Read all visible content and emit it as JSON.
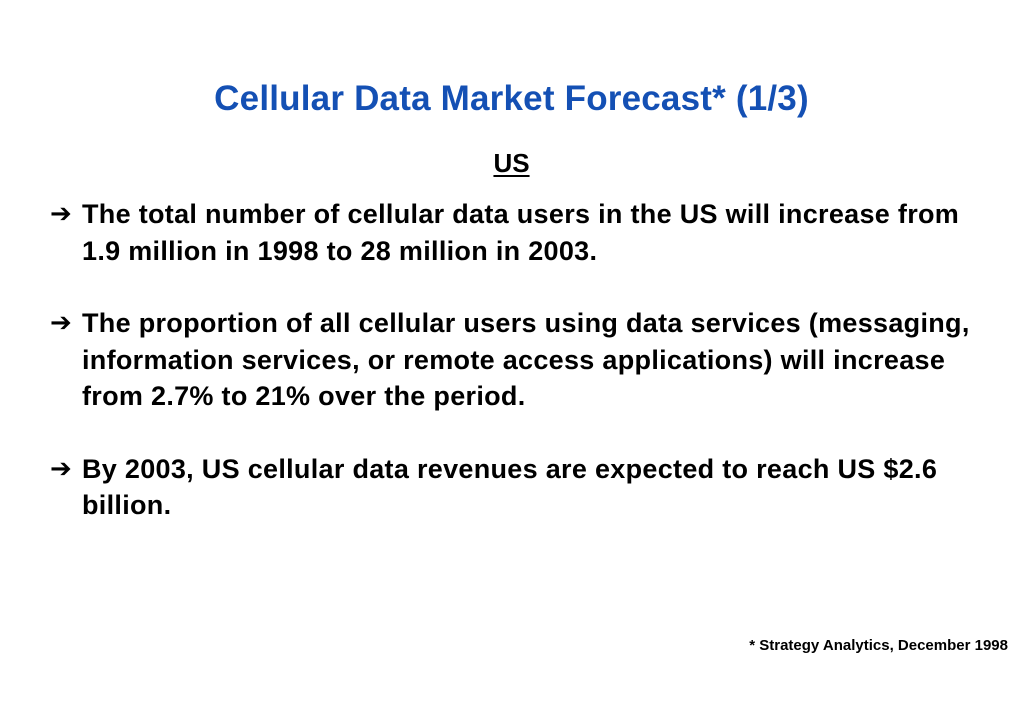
{
  "slide": {
    "title": "Cellular Data Market Forecast* (1/3)",
    "subtitle": "US",
    "bullet_icon": "➔",
    "bullets": [
      "The total number of cellular data users in the US will increase from 1.9 million in 1998 to 28 million in 2003.",
      "The proportion of all cellular users using data services (messaging, information services, or remote access applications) will increase from 2.7% to 21% over the period.",
      "By 2003, US cellular data revenues are expected to reach US $2.6 billion."
    ],
    "footnote": "* Strategy Analytics, December 1998",
    "colors": {
      "title": "#1450b4",
      "text": "#000000",
      "background": "#ffffff"
    }
  }
}
